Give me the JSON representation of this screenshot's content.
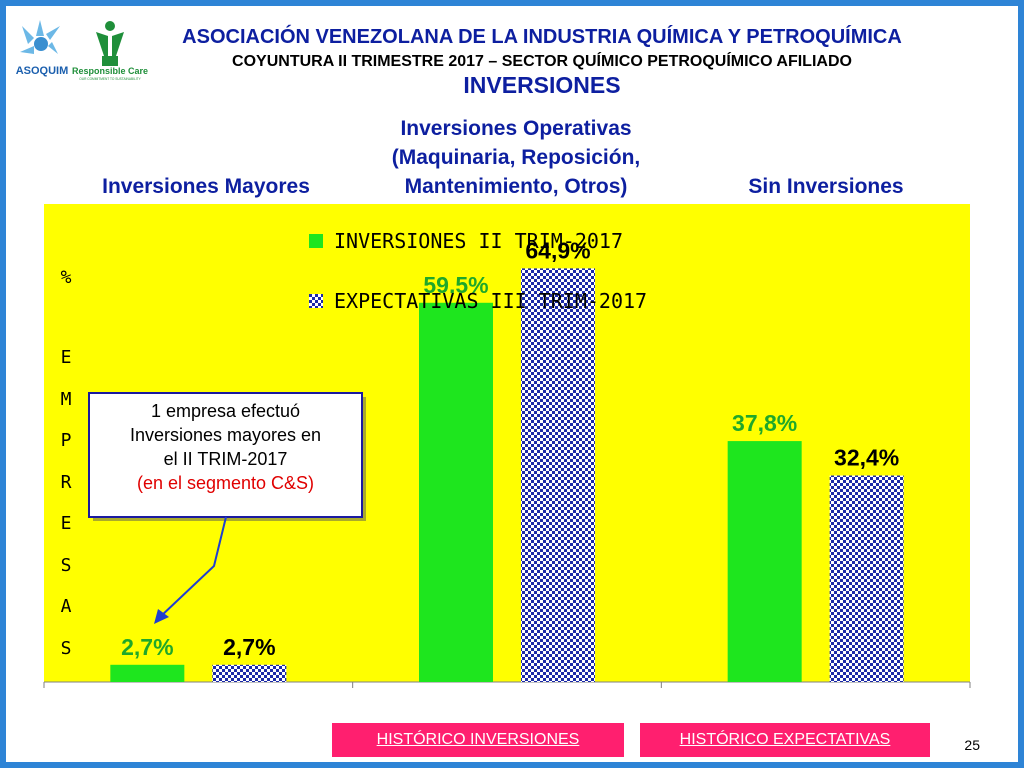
{
  "header": {
    "logo_left_text": "ASOQUIM",
    "logo_right_text": "Responsible Care",
    "logo_right_tagline": "OUR COMMITMENT TO SUSTAINABILITY",
    "org_title": "ASOCIACIÓN VENEZOLANA DE LA INDUSTRIA QUÍMICA Y PETROQUÍMICA",
    "subtitle": "COYUNTURA II TRIMESTRE 2017 – SECTOR QUÍMICO PETROQUÍMICO AFILIADO",
    "section_title": "INVERSIONES"
  },
  "category_headers": [
    [
      "Inversiones Mayores"
    ],
    [
      "Inversiones Operativas",
      "(Maquinaria, Reposición,",
      "Mantenimiento, Otros)"
    ],
    [
      "Sin Inversiones"
    ]
  ],
  "chart_data": {
    "type": "bar",
    "categories": [
      "Inversiones Mayores",
      "Inversiones Operativas (Maquinaria, Reposición, Mantenimiento, Otros)",
      "Sin Inversiones"
    ],
    "series": [
      {
        "name": "INVERSIONES II TRIM-2017",
        "values": [
          2.7,
          59.5,
          37.8
        ],
        "labels": [
          "2,7%",
          "59,5%",
          "37,8%"
        ],
        "color": "#1ee61e"
      },
      {
        "name": "EXPECTATIVAS III TRIM-2017",
        "values": [
          2.7,
          64.9,
          32.4
        ],
        "labels": [
          "2,7%",
          "64,9%",
          "32,4%"
        ],
        "color": "#1c2aa8",
        "pattern": "checker"
      }
    ],
    "ylabel": "% EMPRESAS",
    "ylabel_letters": [
      "%",
      "E",
      "M",
      "P",
      "R",
      "E",
      "S",
      "A",
      "S"
    ],
    "ylim": [
      0,
      75
    ],
    "legend_position": "top-center",
    "plot_background": "#ffff00",
    "annotation": {
      "lines": [
        "1 empresa efectuó",
        "Inversiones mayores en",
        "el II TRIM-2017"
      ],
      "highlight": "(en el segmento C&S)",
      "highlight_color": "#e00000",
      "target": "Inversiones Mayores / INVERSIONES II TRIM-2017"
    }
  },
  "nav": {
    "buttons": [
      {
        "label": "HISTÓRICO INVERSIONES"
      },
      {
        "label": "HISTÓRICO EXPECTATIVAS"
      }
    ]
  },
  "page_number": "25",
  "colors": {
    "frame": "#2e84d6",
    "title": "#0d1fa0",
    "button": "#ff1f6f"
  }
}
